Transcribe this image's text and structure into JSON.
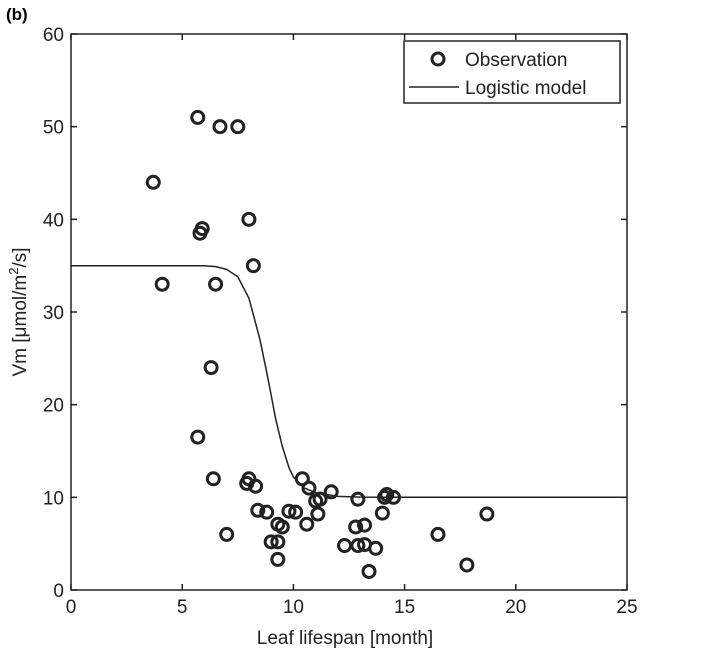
{
  "figure": {
    "panel_label": "(b)"
  },
  "chart_data": {
    "type": "scatter",
    "xlabel": "Leaf lifespan [month]",
    "ylabel_parts": [
      "Vm [μmol/m",
      "2",
      "/s]"
    ],
    "xlim": [
      0,
      25
    ],
    "ylim": [
      0,
      60
    ],
    "xticks": [
      0,
      5,
      10,
      15,
      20,
      25
    ],
    "yticks": [
      0,
      10,
      20,
      30,
      40,
      50,
      60
    ],
    "grid": false,
    "legend_position": "top-right",
    "series": [
      {
        "name": "Observation",
        "kind": "markers",
        "marker": "open-circle",
        "points": [
          [
            3.7,
            44
          ],
          [
            4.1,
            33
          ],
          [
            5.7,
            51
          ],
          [
            6.7,
            50
          ],
          [
            7.5,
            50
          ],
          [
            5.8,
            38.5
          ],
          [
            5.9,
            39
          ],
          [
            8.0,
            40
          ],
          [
            8.2,
            35
          ],
          [
            6.5,
            33
          ],
          [
            6.3,
            24
          ],
          [
            5.7,
            16.5
          ],
          [
            6.4,
            12
          ],
          [
            7.9,
            11.5
          ],
          [
            8.0,
            12
          ],
          [
            8.3,
            11.2
          ],
          [
            7.0,
            6
          ],
          [
            8.4,
            8.6
          ],
          [
            8.8,
            8.4
          ],
          [
            9.0,
            5.2
          ],
          [
            9.3,
            5.2
          ],
          [
            9.3,
            7.1
          ],
          [
            9.5,
            6.8
          ],
          [
            9.3,
            3.3
          ],
          [
            9.8,
            8.5
          ],
          [
            10.1,
            8.4
          ],
          [
            10.4,
            12
          ],
          [
            10.7,
            11
          ],
          [
            10.6,
            7.1
          ],
          [
            11.0,
            9.6
          ],
          [
            11.1,
            8.2
          ],
          [
            11.2,
            9.8
          ],
          [
            11.7,
            10.6
          ],
          [
            12.3,
            4.8
          ],
          [
            12.8,
            6.8
          ],
          [
            12.9,
            4.8
          ],
          [
            13.2,
            4.9
          ],
          [
            13.2,
            7.0
          ],
          [
            12.9,
            9.8
          ],
          [
            13.4,
            2
          ],
          [
            13.7,
            4.5
          ],
          [
            14.0,
            8.3
          ],
          [
            14.1,
            10.0
          ],
          [
            14.2,
            10.3
          ],
          [
            14.5,
            10.0
          ],
          [
            16.5,
            6
          ],
          [
            17.8,
            2.7
          ],
          [
            18.7,
            8.2
          ]
        ]
      },
      {
        "name": "Logistic model",
        "kind": "line",
        "points": [
          [
            0,
            35
          ],
          [
            6,
            35
          ],
          [
            6.5,
            34.9
          ],
          [
            7,
            34.6
          ],
          [
            7.5,
            33.8
          ],
          [
            8,
            31.5
          ],
          [
            8.5,
            27
          ],
          [
            8.8,
            23.5
          ],
          [
            9,
            21
          ],
          [
            9.2,
            18.5
          ],
          [
            9.5,
            15.5
          ],
          [
            9.8,
            13.2
          ],
          [
            10,
            12.2
          ],
          [
            10.5,
            11
          ],
          [
            11,
            10.5
          ],
          [
            12,
            10.1
          ],
          [
            13,
            10.02
          ],
          [
            14,
            10
          ],
          [
            25,
            10
          ]
        ]
      }
    ]
  }
}
